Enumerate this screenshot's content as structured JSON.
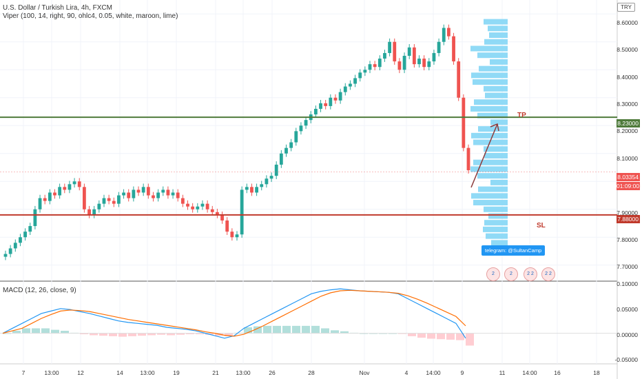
{
  "header": {
    "title": "U.S. Dollar / Turkish Lira, 4h, FXCM",
    "indicator": "Viper (100, 14, right, 90, ohlc4, 0.05, white, maroon, lime)",
    "currency": "TRY"
  },
  "price_axis": {
    "ticks": [
      "8.60000",
      "8.50000",
      "8.40000",
      "8.30000",
      "8.20000",
      "8.10000",
      "7.90000",
      "7.80000",
      "7.70000"
    ],
    "tp_price": "8.23000",
    "current_price": "8.03354",
    "countdown": "01:09:00",
    "sl_price": "7.88000"
  },
  "macd": {
    "title": "MACD (12, 26, close, 9)",
    "ticks": [
      "0.10000",
      "0.05000",
      "0.00000",
      "-0.05000"
    ]
  },
  "time_axis": {
    "ticks": [
      "7",
      "13:00",
      "12",
      "14",
      "13:00",
      "19",
      "21",
      "13:00",
      "26",
      "28",
      "Nov",
      "4",
      "14:00",
      "9",
      "11",
      "14:00",
      "16",
      "18"
    ]
  },
  "annotations": {
    "tp_label": "TP",
    "sl_label": "SL",
    "telegram": "telegram: @SultanCamp"
  },
  "emoji_counts": [
    "2",
    "2",
    "2 2",
    "2 2"
  ],
  "colors": {
    "up": "#26a69a",
    "down": "#ef5350",
    "tp_line": "#4e7a3a",
    "sl_line": "#c0392b",
    "macd_line": "#2196f3",
    "signal_line": "#ff6d00",
    "profile": "#7dd3f5"
  },
  "chart_data": {
    "type": "candlestick",
    "symbol": "USDTRY",
    "close_series": [
      7.74,
      7.76,
      7.78,
      7.8,
      7.82,
      7.84,
      7.9,
      7.94,
      7.93,
      7.96,
      7.95,
      7.98,
      7.97,
      7.99,
      8.0,
      7.98,
      7.9,
      7.88,
      7.9,
      7.92,
      7.94,
      7.93,
      7.92,
      7.95,
      7.96,
      7.94,
      7.97,
      7.96,
      7.98,
      7.95,
      7.94,
      7.96,
      7.97,
      7.95,
      7.96,
      7.94,
      7.92,
      7.91,
      7.9,
      7.91,
      7.92,
      7.9,
      7.89,
      7.88,
      7.86,
      7.82,
      7.8,
      7.81,
      7.97,
      7.98,
      7.96,
      7.98,
      7.99,
      8.01,
      8.02,
      8.06,
      8.1,
      8.12,
      8.14,
      8.18,
      8.2,
      8.22,
      8.24,
      8.26,
      8.28,
      8.27,
      8.3,
      8.29,
      8.32,
      8.34,
      8.35,
      8.37,
      8.39,
      8.4,
      8.42,
      8.41,
      8.44,
      8.46,
      8.5,
      8.43,
      8.4,
      8.45,
      8.48,
      8.42,
      8.44,
      8.41,
      8.43,
      8.46,
      8.5,
      8.55,
      8.52,
      8.43,
      8.3,
      8.12,
      8.04
    ],
    "macd_line": [
      0.0,
      0.01,
      0.02,
      0.03,
      0.04,
      0.045,
      0.05,
      0.048,
      0.044,
      0.04,
      0.035,
      0.03,
      0.025,
      0.022,
      0.02,
      0.018,
      0.016,
      0.012,
      0.01,
      0.008,
      0.005,
      0.0,
      -0.005,
      -0.01,
      -0.005,
      0.01,
      0.02,
      0.03,
      0.04,
      0.05,
      0.06,
      0.07,
      0.08,
      0.085,
      0.088,
      0.09,
      0.088,
      0.086,
      0.085,
      0.084,
      0.083,
      0.08,
      0.07,
      0.06,
      0.05,
      0.04,
      0.03,
      0.02,
      -0.01
    ],
    "signal_line": [
      0.0,
      0.005,
      0.01,
      0.02,
      0.03,
      0.038,
      0.045,
      0.047,
      0.046,
      0.044,
      0.04,
      0.036,
      0.032,
      0.028,
      0.025,
      0.022,
      0.019,
      0.016,
      0.013,
      0.01,
      0.007,
      0.003,
      0.0,
      -0.004,
      -0.006,
      -0.002,
      0.006,
      0.015,
      0.025,
      0.035,
      0.045,
      0.055,
      0.065,
      0.075,
      0.082,
      0.086,
      0.087,
      0.086,
      0.085,
      0.084,
      0.083,
      0.081,
      0.076,
      0.069,
      0.061,
      0.052,
      0.043,
      0.034,
      0.015
    ],
    "y_range": [
      7.65,
      8.65
    ],
    "macd_range": [
      -0.055,
      0.1
    ]
  }
}
